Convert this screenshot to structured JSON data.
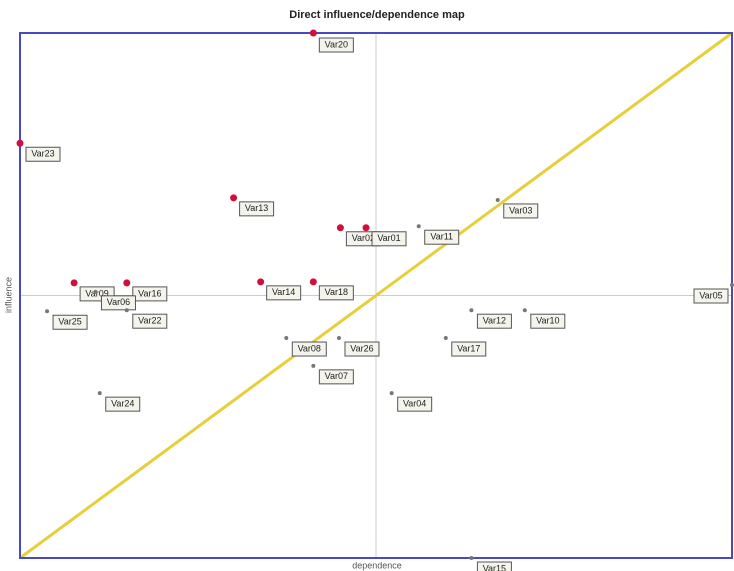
{
  "chart_data": {
    "type": "scatter",
    "title": "Direct influence/dependence map",
    "xlabel": "dependence",
    "ylabel": "influence",
    "xlim": [
      0,
      100
    ],
    "ylim": [
      0,
      100
    ],
    "quadrant_lines": {
      "x": 50,
      "y": 50
    },
    "diagonal": true,
    "diagonal_color": "#e6cf3a",
    "frame_color": "#4a4ac0",
    "labels": [
      "Var20",
      "Var23",
      "Var13",
      "Var02",
      "Var01",
      "Var11",
      "Var03",
      "Var09",
      "Var16",
      "Var06",
      "Var14",
      "Var18",
      "Var05",
      "Var25",
      "Var22",
      "Var10",
      "Var12",
      "Var08",
      "Var26",
      "Var17",
      "Var07",
      "Var04",
      "Var24",
      "Var15"
    ],
    "x": [
      41.2,
      0,
      30.0,
      45.0,
      48.6,
      56.0,
      67.1,
      7.6,
      15.0,
      10.6,
      33.8,
      41.2,
      100,
      3.8,
      15.0,
      70.9,
      63.4,
      37.4,
      44.8,
      59.8,
      41.2,
      52.2,
      11.2,
      63.4
    ],
    "values": [
      100,
      79.0,
      68.6,
      62.9,
      62.9,
      63.2,
      68.2,
      52.4,
      52.4,
      50.7,
      52.6,
      52.6,
      52.0,
      47.0,
      47.2,
      47.2,
      47.2,
      41.9,
      41.9,
      41.9,
      36.6,
      31.4,
      31.4,
      0
    ],
    "point_colors": [
      "#d0103a",
      "#d0103a",
      "#d0103a",
      "#d0103a",
      "#d0103a",
      "#777777",
      "#777777",
      "#d0103a",
      "#d0103a",
      "#777777",
      "#d0103a",
      "#d0103a",
      "#777777",
      "#777777",
      "#777777",
      "#777777",
      "#777777",
      "#777777",
      "#777777",
      "#777777",
      "#777777",
      "#777777",
      "#777777",
      "#777777"
    ]
  }
}
